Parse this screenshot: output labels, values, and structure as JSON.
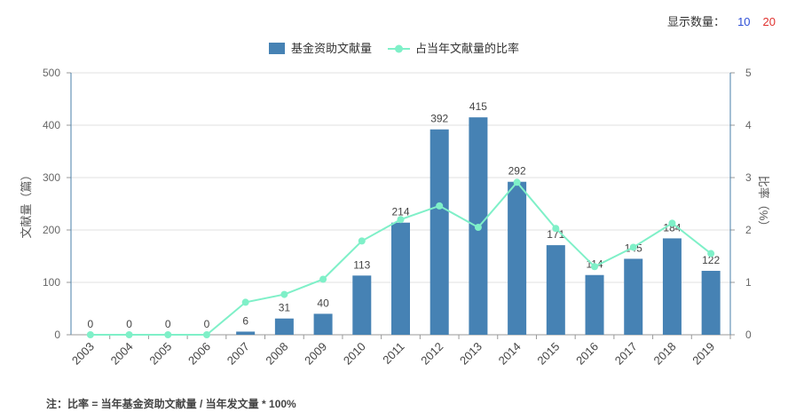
{
  "controls": {
    "count_label": "显示数量：",
    "options": [
      "10",
      "20"
    ],
    "option_colors": [
      "#2d4fd6",
      "#e0322f"
    ]
  },
  "footnote": "注：比率 = 当年基金资助文献量 / 当年发文量 * 100%",
  "chart_data": {
    "type": "bar",
    "categories": [
      "2003",
      "2004",
      "2005",
      "2006",
      "2007",
      "2008",
      "2009",
      "2010",
      "2011",
      "2012",
      "2013",
      "2014",
      "2015",
      "2016",
      "2017",
      "2018",
      "2019"
    ],
    "series": [
      {
        "name": "基金资助文献量",
        "type": "bar",
        "axis": "left",
        "color": "#4682b4",
        "values": [
          0,
          0,
          0,
          0,
          6,
          31,
          40,
          113,
          214,
          392,
          415,
          292,
          171,
          114,
          145,
          184,
          122
        ],
        "data_labels": true
      },
      {
        "name": "占当年文献量的比率",
        "type": "line",
        "axis": "right",
        "color": "#7ff0c8",
        "values": [
          0,
          0,
          0,
          0,
          0.62,
          0.77,
          1.06,
          1.79,
          2.2,
          2.46,
          2.05,
          2.91,
          2.03,
          1.3,
          1.67,
          2.13,
          1.55
        ]
      }
    ],
    "ylabel": "文献量（篇）",
    "ylabel_right": "比率（%）",
    "ylim": [
      0,
      500
    ],
    "yticks": [
      0,
      100,
      200,
      300,
      400,
      500
    ],
    "ylim_right": [
      0,
      5
    ],
    "yticks_right": [
      0,
      1,
      2,
      3,
      4,
      5
    ],
    "grid": true,
    "legend_position": "top-center"
  }
}
